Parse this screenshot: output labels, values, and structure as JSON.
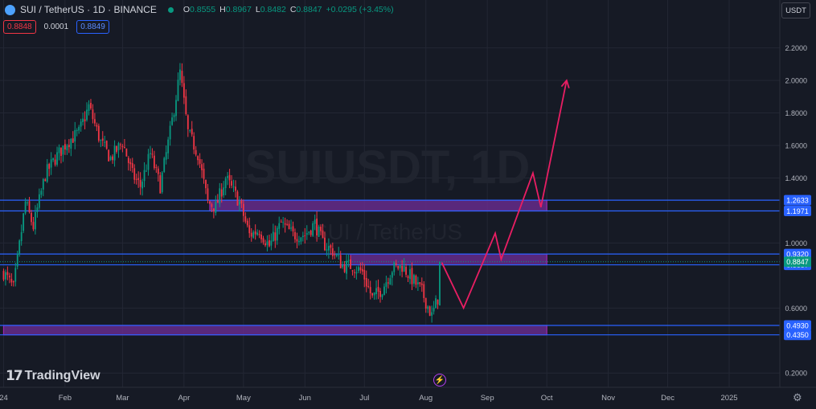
{
  "header": {
    "title": "SUI / TetherUS · 1D · BINANCE",
    "open_label": "O",
    "open": "0.8555",
    "high_label": "H",
    "high": "0.8967",
    "low_label": "L",
    "low": "0.8482",
    "close_label": "C",
    "close": "0.8847",
    "change": "+0.0295 (+3.45%)",
    "sell_price": "0.8848",
    "spread": "0.0001",
    "buy_price": "0.8849",
    "currency": "USDT"
  },
  "watermark": {
    "symbol": "SUIUSDT, 1D",
    "name": "SUI / TetherUS"
  },
  "logo": {
    "mark": "17",
    "text": "TradingView"
  },
  "icons": {
    "symbol": "sui-logo-icon",
    "status": "market-open-dot-icon",
    "alert": "lightning-icon",
    "settings": "gear-icon"
  },
  "colors": {
    "up": "#089981",
    "down": "#f23645",
    "level_line": "#2962ff",
    "zone_fill": "#6a2c91",
    "zone_border": "#9c27b0",
    "projection": "#e91e63",
    "background": "#161a25",
    "grid": "#232734"
  },
  "chart_data": {
    "type": "candlestick",
    "instrument": "SUI / TetherUS",
    "timeframe": "1D",
    "exchange": "BINANCE",
    "x_labels": [
      "24",
      "Feb",
      "Mar",
      "Apr",
      "May",
      "Jun",
      "Jul",
      "Aug",
      "Sep",
      "Oct",
      "Nov",
      "Dec",
      "2025"
    ],
    "y_ticks": [
      "0.2000",
      "0.6000",
      "1.0000",
      "1.2000",
      "1.4000",
      "1.6000",
      "1.8000",
      "2.0000",
      "2.2000"
    ],
    "ylim": [
      0.2,
      2.2
    ],
    "price_path": [
      [
        "2024-01-01",
        0.82
      ],
      [
        "2024-01-06",
        0.72
      ],
      [
        "2024-01-12",
        1.25
      ],
      [
        "2024-01-16",
        1.1
      ],
      [
        "2024-01-22",
        1.42
      ],
      [
        "2024-01-27",
        1.52
      ],
      [
        "2024-02-02",
        1.62
      ],
      [
        "2024-02-08",
        1.68
      ],
      [
        "2024-02-13",
        1.84
      ],
      [
        "2024-02-19",
        1.62
      ],
      [
        "2024-02-24",
        1.52
      ],
      [
        "2024-03-01",
        1.62
      ],
      [
        "2024-03-06",
        1.42
      ],
      [
        "2024-03-10",
        1.35
      ],
      [
        "2024-03-15",
        1.55
      ],
      [
        "2024-03-20",
        1.35
      ],
      [
        "2024-03-25",
        1.68
      ],
      [
        "2024-03-30",
        2.05
      ],
      [
        "2024-04-03",
        1.68
      ],
      [
        "2024-04-08",
        1.55
      ],
      [
        "2024-04-13",
        1.25
      ],
      [
        "2024-04-17",
        1.22
      ],
      [
        "2024-04-22",
        1.4
      ],
      [
        "2024-04-29",
        1.25
      ],
      [
        "2024-05-04",
        1.05
      ],
      [
        "2024-05-09",
        1.08
      ],
      [
        "2024-05-14",
        0.98
      ],
      [
        "2024-05-20",
        1.12
      ],
      [
        "2024-05-26",
        1.05
      ],
      [
        "2024-06-01",
        1.05
      ],
      [
        "2024-06-06",
        1.12
      ],
      [
        "2024-06-10",
        1.0
      ],
      [
        "2024-06-15",
        0.95
      ],
      [
        "2024-06-20",
        0.86
      ],
      [
        "2024-06-25",
        0.86
      ],
      [
        "2024-06-30",
        0.82
      ],
      [
        "2024-07-05",
        0.66
      ],
      [
        "2024-07-10",
        0.72
      ],
      [
        "2024-07-15",
        0.84
      ],
      [
        "2024-07-20",
        0.86
      ],
      [
        "2024-07-25",
        0.78
      ],
      [
        "2024-07-30",
        0.7
      ],
      [
        "2024-08-04",
        0.55
      ],
      [
        "2024-08-07",
        0.66
      ],
      [
        "2024-08-09",
        0.8847
      ]
    ],
    "last_price": 0.8847,
    "levels": [
      1.2633,
      1.1971,
      0.932,
      0.8657,
      0.493,
      0.435
    ],
    "zones": [
      {
        "from": 1.1971,
        "to": 1.2633,
        "start": "2024-04-14",
        "end": "2024-10-01"
      },
      {
        "from": 0.8657,
        "to": 0.932,
        "start": "2024-06-24",
        "end": "2024-10-01"
      },
      {
        "from": 0.435,
        "to": 0.493,
        "start": "2024-01-01",
        "end": "2024-10-01"
      }
    ],
    "projection": [
      [
        "2024-08-09",
        0.88
      ],
      [
        "2024-08-20",
        0.6
      ],
      [
        "2024-09-05",
        1.06
      ],
      [
        "2024-09-08",
        0.9
      ],
      [
        "2024-09-24",
        1.43
      ],
      [
        "2024-09-28",
        1.22
      ],
      [
        "2024-10-11",
        2.0
      ]
    ]
  }
}
